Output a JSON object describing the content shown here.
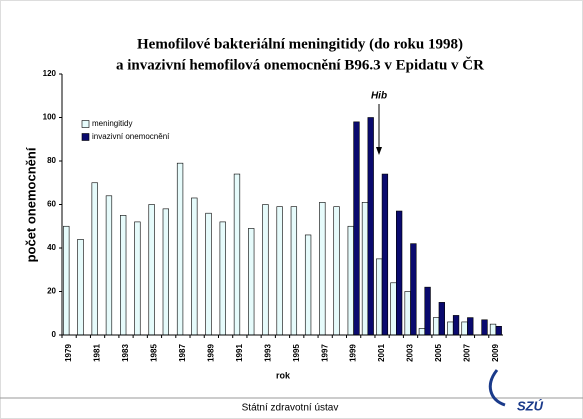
{
  "chart_data": {
    "type": "bar",
    "title": "Hemofilové bakteriální meningitidy (do roku 1998)",
    "subtitle": "a invazivní hemofilová onemocnění B96.3 v Epidatu v ČR",
    "y_label": "počet onemocnění",
    "x_label": "rok",
    "annotation": "Hib",
    "footer": "Státní zdravotní ústav",
    "logo": "SZÚ",
    "categories": [
      "1979",
      null,
      "1981",
      null,
      "1983",
      null,
      "1985",
      null,
      "1987",
      null,
      "1989",
      null,
      "1991",
      null,
      "1993",
      null,
      "1995",
      null,
      "1997",
      null,
      "1999",
      null,
      "2001",
      null,
      "2003",
      null,
      "2005",
      null,
      "2007",
      null,
      "2009"
    ],
    "series": [
      {
        "name": "meningitidy",
        "color": "#e6fbfb",
        "values": [
          50,
          44,
          70,
          64,
          55,
          52,
          60,
          58,
          79,
          63,
          56,
          52,
          74,
          49,
          60,
          59,
          59,
          46,
          61,
          59,
          50,
          61,
          35,
          24,
          20,
          3,
          8,
          6,
          6,
          0,
          5
        ]
      },
      {
        "name": "invazivní onemocnění",
        "color": "#0a0a6e",
        "values": [
          null,
          null,
          null,
          null,
          null,
          null,
          null,
          null,
          null,
          null,
          null,
          null,
          null,
          null,
          null,
          null,
          null,
          null,
          null,
          null,
          98,
          100,
          74,
          57,
          42,
          22,
          15,
          9,
          8,
          7,
          4
        ]
      }
    ],
    "ylim": [
      0,
      120
    ],
    "yticks": [
      0,
      20,
      40,
      60,
      80,
      100,
      120
    ],
    "grid": false
  }
}
